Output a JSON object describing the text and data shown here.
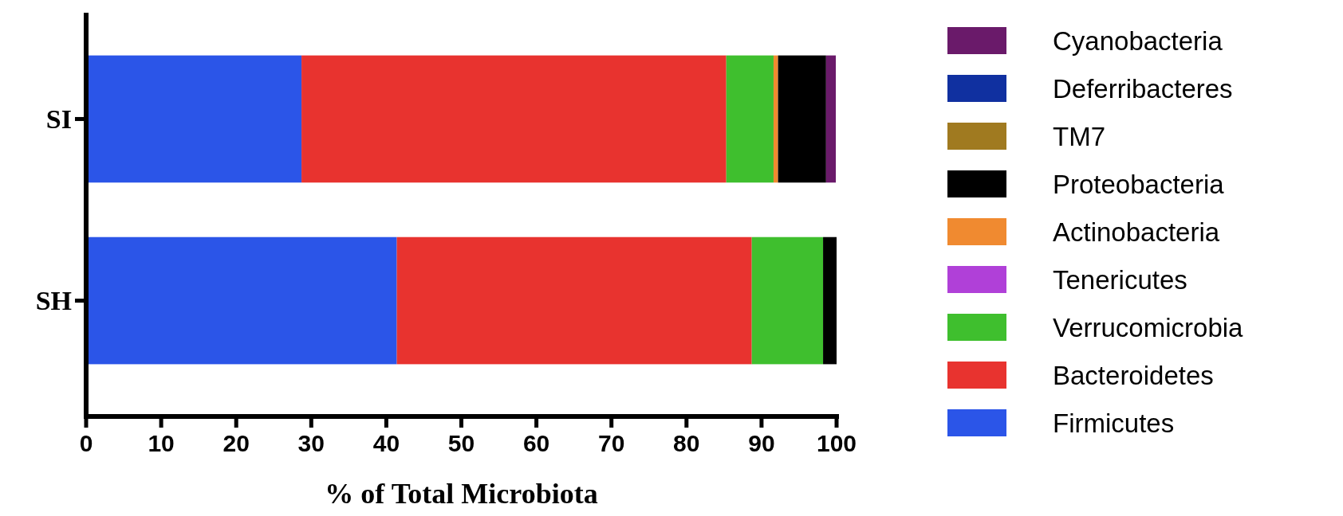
{
  "chart_data": {
    "type": "bar",
    "orientation": "horizontal",
    "stacked": true,
    "xlabel": "% of Total Microbiota",
    "categories": [
      "SI",
      "SH"
    ],
    "xlim": [
      0,
      100
    ],
    "xticks": [
      0,
      10,
      20,
      30,
      40,
      50,
      60,
      70,
      80,
      90,
      100
    ],
    "grid": false,
    "legend": "right",
    "series": [
      {
        "name": "Firmicutes",
        "color": "#2b55e8",
        "values": [
          28.7,
          41.4
        ]
      },
      {
        "name": "Bacteroidetes",
        "color": "#e8332f",
        "values": [
          56.6,
          47.3
        ]
      },
      {
        "name": "Verrucomicrobia",
        "color": "#3fbf2e",
        "values": [
          6.3,
          9.5
        ]
      },
      {
        "name": "Tenericutes",
        "color": "#b040d8",
        "values": [
          0,
          0
        ]
      },
      {
        "name": "Actinobacteria",
        "color": "#f08a30",
        "values": [
          0.6,
          0
        ]
      },
      {
        "name": "Proteobacteria",
        "color": "#000000",
        "values": [
          6.4,
          1.8
        ]
      },
      {
        "name": "TM7",
        "color": "#a07a20",
        "values": [
          0,
          0
        ]
      },
      {
        "name": "Deferribacteres",
        "color": "#1030a0",
        "values": [
          0,
          0
        ]
      },
      {
        "name": "Cyanobacteria",
        "color": "#6a1a6a",
        "values": [
          1.3,
          0
        ]
      }
    ]
  }
}
